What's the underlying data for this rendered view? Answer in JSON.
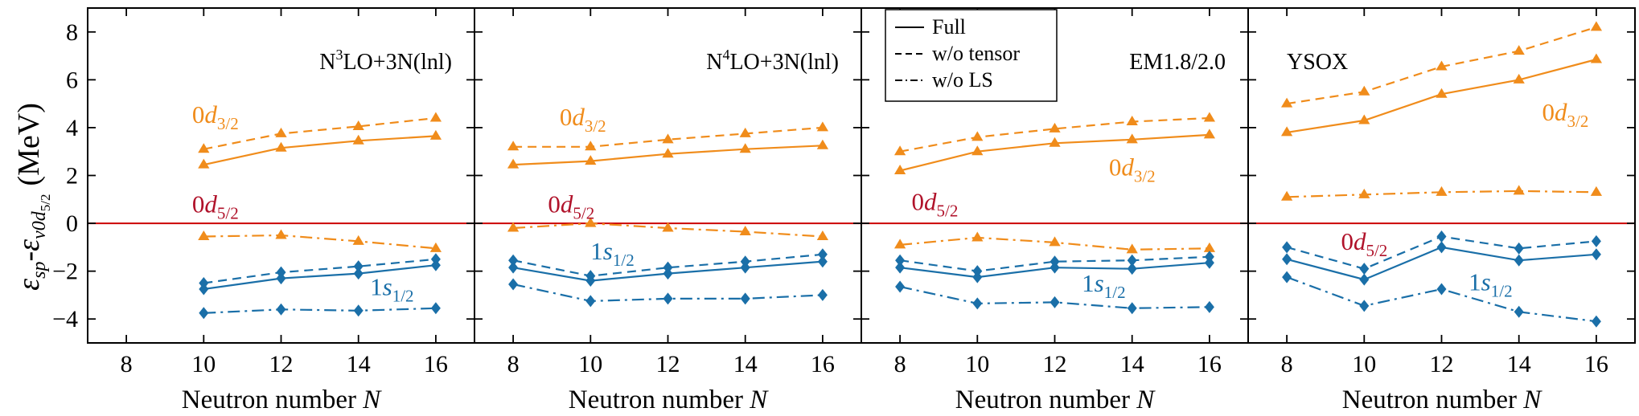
{
  "figure": {
    "ylabel_parts": {
      "e1": "ε",
      "sp": "sp",
      "dash": "-",
      "e2": "ε",
      "nu0d": "ν0d",
      "sub52": "5/2",
      "unit": "(MeV)"
    }
  },
  "chart_data": [
    {
      "type": "line",
      "title": "N³LO+3N(lnl)",
      "title_parts": {
        "a": "N",
        "sup": "3",
        "b": "LO+3N(lnl)"
      },
      "xlabel": "Neutron number N",
      "xlabel_parts": {
        "text": "Neutron number ",
        "italic": "N"
      },
      "xlim": [
        7,
        17
      ],
      "ylim": [
        -5,
        9
      ],
      "xticks": [
        8,
        10,
        12,
        14,
        16
      ],
      "yticks": [
        -4,
        -2,
        0,
        2,
        4,
        6,
        8
      ],
      "reference_line": {
        "y": 0,
        "color": "#cc0000"
      },
      "series": [
        {
          "name": "0d3/2 Full",
          "orbital": "0d3/2",
          "variant": "Full",
          "color": "#f08c1b",
          "marker": "triangle",
          "dash": "solid",
          "x": [
            10,
            12,
            14,
            16
          ],
          "y": [
            2.45,
            3.15,
            3.45,
            3.65
          ]
        },
        {
          "name": "0d3/2 w/o tensor",
          "orbital": "0d3/2",
          "variant": "w/o tensor",
          "color": "#f08c1b",
          "marker": "triangle",
          "dash": "dashed",
          "x": [
            10,
            12,
            14,
            16
          ],
          "y": [
            3.1,
            3.75,
            4.05,
            4.4
          ]
        },
        {
          "name": "0d3/2 w/o LS",
          "orbital": "0d3/2",
          "variant": "w/o LS",
          "color": "#f08c1b",
          "marker": "triangle",
          "dash": "dashdot",
          "x": [
            10,
            12,
            14,
            16
          ],
          "y": [
            -0.55,
            -0.5,
            -0.75,
            -1.05
          ]
        },
        {
          "name": "1s1/2 Full",
          "orbital": "1s1/2",
          "variant": "Full",
          "color": "#1a6fa8",
          "marker": "diamond",
          "dash": "solid",
          "x": [
            10,
            12,
            14,
            16
          ],
          "y": [
            -2.75,
            -2.3,
            -2.1,
            -1.75
          ]
        },
        {
          "name": "1s1/2 w/o tensor",
          "orbital": "1s1/2",
          "variant": "w/o tensor",
          "color": "#1a6fa8",
          "marker": "diamond",
          "dash": "dashed",
          "x": [
            10,
            12,
            14,
            16
          ],
          "y": [
            -2.5,
            -2.05,
            -1.8,
            -1.5
          ]
        },
        {
          "name": "1s1/2 w/o LS",
          "orbital": "1s1/2",
          "variant": "w/o LS",
          "color": "#1a6fa8",
          "marker": "diamond",
          "dash": "dashdot",
          "x": [
            10,
            12,
            14,
            16
          ],
          "y": [
            -3.75,
            -3.6,
            -3.65,
            -3.55
          ]
        }
      ],
      "annotations": [
        {
          "id": "d32",
          "base": "0",
          "ital": "d",
          "sub": "3/2",
          "color": "#f08c1b",
          "x": 9.7,
          "y": 4.2
        },
        {
          "id": "d52",
          "base": "0",
          "ital": "d",
          "sub": "5/2",
          "color": "#b0122a",
          "x": 9.7,
          "y": 0.45
        },
        {
          "id": "s12",
          "base": "1",
          "ital": "s",
          "sub": "1/2",
          "color": "#1a6fa8",
          "x": 14.3,
          "y": -3.0
        }
      ]
    },
    {
      "type": "line",
      "title": "N⁴LO+3N(lnl)",
      "title_parts": {
        "a": "N",
        "sup": "4",
        "b": "LO+3N(lnl)"
      },
      "xlabel": "Neutron number N",
      "xlabel_parts": {
        "text": "Neutron number ",
        "italic": "N"
      },
      "xlim": [
        7,
        17
      ],
      "ylim": [
        -5,
        9
      ],
      "xticks": [
        8,
        10,
        12,
        14,
        16
      ],
      "yticks": [
        -4,
        -2,
        0,
        2,
        4,
        6,
        8
      ],
      "reference_line": {
        "y": 0,
        "color": "#cc0000"
      },
      "series": [
        {
          "name": "0d3/2 Full",
          "orbital": "0d3/2",
          "variant": "Full",
          "color": "#f08c1b",
          "marker": "triangle",
          "dash": "solid",
          "x": [
            8,
            10,
            12,
            14,
            16
          ],
          "y": [
            2.45,
            2.6,
            2.9,
            3.1,
            3.25
          ]
        },
        {
          "name": "0d3/2 w/o tensor",
          "orbital": "0d3/2",
          "variant": "w/o tensor",
          "color": "#f08c1b",
          "marker": "triangle",
          "dash": "dashed",
          "x": [
            8,
            10,
            12,
            14,
            16
          ],
          "y": [
            3.2,
            3.2,
            3.5,
            3.75,
            4.0
          ]
        },
        {
          "name": "0d3/2 w/o LS",
          "orbital": "0d3/2",
          "variant": "w/o LS",
          "color": "#f08c1b",
          "marker": "triangle",
          "dash": "dashdot",
          "x": [
            8,
            10,
            12,
            14,
            16
          ],
          "y": [
            -0.2,
            -0.0,
            -0.2,
            -0.35,
            -0.55
          ]
        },
        {
          "name": "1s1/2 Full",
          "orbital": "1s1/2",
          "variant": "Full",
          "color": "#1a6fa8",
          "marker": "diamond",
          "dash": "solid",
          "x": [
            8,
            10,
            12,
            14,
            16
          ],
          "y": [
            -1.85,
            -2.4,
            -2.1,
            -1.85,
            -1.6
          ]
        },
        {
          "name": "1s1/2 w/o tensor",
          "orbital": "1s1/2",
          "variant": "w/o tensor",
          "color": "#1a6fa8",
          "marker": "diamond",
          "dash": "dashed",
          "x": [
            8,
            10,
            12,
            14,
            16
          ],
          "y": [
            -1.55,
            -2.2,
            -1.85,
            -1.6,
            -1.3
          ]
        },
        {
          "name": "1s1/2 w/o LS",
          "orbital": "1s1/2",
          "variant": "w/o LS",
          "color": "#1a6fa8",
          "marker": "diamond",
          "dash": "dashdot",
          "x": [
            8,
            10,
            12,
            14,
            16
          ],
          "y": [
            -2.55,
            -3.25,
            -3.15,
            -3.15,
            -3.0
          ]
        }
      ],
      "annotations": [
        {
          "id": "d32",
          "base": "0",
          "ital": "d",
          "sub": "3/2",
          "color": "#f08c1b",
          "x": 9.2,
          "y": 4.1
        },
        {
          "id": "d52",
          "base": "0",
          "ital": "d",
          "sub": "5/2",
          "color": "#b0122a",
          "x": 8.9,
          "y": 0.45
        },
        {
          "id": "s12",
          "base": "1",
          "ital": "s",
          "sub": "1/2",
          "color": "#1a6fa8",
          "x": 10.0,
          "y": -1.5
        }
      ]
    },
    {
      "type": "line",
      "title": "EM1.8/2.0",
      "title_parts": {
        "a": "EM1.8/2.0",
        "sup": "",
        "b": ""
      },
      "xlabel": "Neutron number N",
      "xlabel_parts": {
        "text": "Neutron number ",
        "italic": "N"
      },
      "xlim": [
        7,
        17
      ],
      "ylim": [
        -5,
        9
      ],
      "xticks": [
        8,
        10,
        12,
        14,
        16
      ],
      "yticks": [
        -4,
        -2,
        0,
        2,
        4,
        6,
        8
      ],
      "reference_line": {
        "y": 0,
        "color": "#cc0000"
      },
      "legend": {
        "entries": [
          {
            "label": "Full",
            "dash": "solid"
          },
          {
            "label": "w/o tensor",
            "dash": "dashed"
          },
          {
            "label": "w/o LS",
            "dash": "dashdot"
          }
        ],
        "placement": "top-left"
      },
      "series": [
        {
          "name": "0d3/2 Full",
          "orbital": "0d3/2",
          "variant": "Full",
          "color": "#f08c1b",
          "marker": "triangle",
          "dash": "solid",
          "x": [
            8,
            10,
            12,
            14,
            16
          ],
          "y": [
            2.2,
            3.0,
            3.35,
            3.5,
            3.7
          ]
        },
        {
          "name": "0d3/2 w/o tensor",
          "orbital": "0d3/2",
          "variant": "w/o tensor",
          "color": "#f08c1b",
          "marker": "triangle",
          "dash": "dashed",
          "x": [
            8,
            10,
            12,
            14,
            16
          ],
          "y": [
            3.0,
            3.6,
            3.95,
            4.25,
            4.4
          ]
        },
        {
          "name": "0d3/2 w/o LS",
          "orbital": "0d3/2",
          "variant": "w/o LS",
          "color": "#f08c1b",
          "marker": "triangle",
          "dash": "dashdot",
          "x": [
            8,
            10,
            12,
            14,
            16
          ],
          "y": [
            -0.9,
            -0.6,
            -0.8,
            -1.1,
            -1.05
          ]
        },
        {
          "name": "1s1/2 Full",
          "orbital": "1s1/2",
          "variant": "Full",
          "color": "#1a6fa8",
          "marker": "diamond",
          "dash": "solid",
          "x": [
            8,
            10,
            12,
            14,
            16
          ],
          "y": [
            -1.85,
            -2.25,
            -1.85,
            -1.9,
            -1.65
          ]
        },
        {
          "name": "1s1/2 w/o tensor",
          "orbital": "1s1/2",
          "variant": "w/o tensor",
          "color": "#1a6fa8",
          "marker": "diamond",
          "dash": "dashed",
          "x": [
            8,
            10,
            12,
            14,
            16
          ],
          "y": [
            -1.55,
            -2.0,
            -1.6,
            -1.55,
            -1.4
          ]
        },
        {
          "name": "1s1/2 w/o LS",
          "orbital": "1s1/2",
          "variant": "w/o LS",
          "color": "#1a6fa8",
          "marker": "diamond",
          "dash": "dashdot",
          "x": [
            8,
            10,
            12,
            14,
            16
          ],
          "y": [
            -2.65,
            -3.35,
            -3.3,
            -3.55,
            -3.5
          ]
        }
      ],
      "annotations": [
        {
          "id": "d32",
          "base": "0",
          "ital": "d",
          "sub": "3/2",
          "color": "#f08c1b",
          "x": 13.4,
          "y": 2.0
        },
        {
          "id": "d52",
          "base": "0",
          "ital": "d",
          "sub": "5/2",
          "color": "#b0122a",
          "x": 8.3,
          "y": 0.55
        },
        {
          "id": "s12",
          "base": "1",
          "ital": "s",
          "sub": "1/2",
          "color": "#1a6fa8",
          "x": 12.7,
          "y": -2.85
        }
      ]
    },
    {
      "type": "line",
      "title": "YSOX",
      "title_parts": {
        "a": "YSOX",
        "sup": "",
        "b": ""
      },
      "xlabel": "Neutron number N",
      "xlabel_parts": {
        "text": "Neutron number ",
        "italic": "N"
      },
      "xlim": [
        7,
        17
      ],
      "ylim": [
        -5,
        9
      ],
      "xticks": [
        8,
        10,
        12,
        14,
        16
      ],
      "yticks": [
        -4,
        -2,
        0,
        2,
        4,
        6,
        8
      ],
      "reference_line": {
        "y": 0,
        "color": "#cc0000"
      },
      "series": [
        {
          "name": "0d3/2 Full",
          "orbital": "0d3/2",
          "variant": "Full",
          "color": "#f08c1b",
          "marker": "triangle",
          "dash": "solid",
          "x": [
            8,
            10,
            12,
            14,
            16
          ],
          "y": [
            3.8,
            4.3,
            5.4,
            6.0,
            6.85
          ]
        },
        {
          "name": "0d3/2 w/o tensor",
          "orbital": "0d3/2",
          "variant": "w/o tensor",
          "color": "#f08c1b",
          "marker": "triangle",
          "dash": "dashed",
          "x": [
            8,
            10,
            12,
            14,
            16
          ],
          "y": [
            5.0,
            5.5,
            6.55,
            7.2,
            8.2
          ]
        },
        {
          "name": "0d3/2 w/o LS",
          "orbital": "0d3/2",
          "variant": "w/o LS",
          "color": "#f08c1b",
          "marker": "triangle",
          "dash": "dashdot",
          "x": [
            8,
            10,
            12,
            14,
            16
          ],
          "y": [
            1.1,
            1.2,
            1.3,
            1.35,
            1.3
          ]
        },
        {
          "name": "1s1/2 Full",
          "orbital": "1s1/2",
          "variant": "Full",
          "color": "#1a6fa8",
          "marker": "diamond",
          "dash": "solid",
          "x": [
            8,
            10,
            12,
            14,
            16
          ],
          "y": [
            -1.5,
            -2.35,
            -1.0,
            -1.55,
            -1.3
          ]
        },
        {
          "name": "1s1/2 w/o tensor",
          "orbital": "1s1/2",
          "variant": "w/o tensor",
          "color": "#1a6fa8",
          "marker": "diamond",
          "dash": "dashed",
          "x": [
            8,
            10,
            12,
            14,
            16
          ],
          "y": [
            -1.0,
            -1.9,
            -0.55,
            -1.05,
            -0.75
          ]
        },
        {
          "name": "1s1/2 w/o LS",
          "orbital": "1s1/2",
          "variant": "w/o LS",
          "color": "#1a6fa8",
          "marker": "diamond",
          "dash": "dashdot",
          "x": [
            8,
            10,
            12,
            14,
            16
          ],
          "y": [
            -2.25,
            -3.45,
            -2.75,
            -3.7,
            -4.1
          ]
        }
      ],
      "annotations": [
        {
          "id": "d32",
          "base": "0",
          "ital": "d",
          "sub": "3/2",
          "color": "#f08c1b",
          "x": 14.6,
          "y": 4.3
        },
        {
          "id": "d52",
          "base": "0",
          "ital": "d",
          "sub": "5/2",
          "color": "#b0122a",
          "x": 9.4,
          "y": -1.1
        },
        {
          "id": "s12",
          "base": "1",
          "ital": "s",
          "sub": "1/2",
          "color": "#1a6fa8",
          "x": 12.7,
          "y": -2.8
        }
      ]
    }
  ]
}
